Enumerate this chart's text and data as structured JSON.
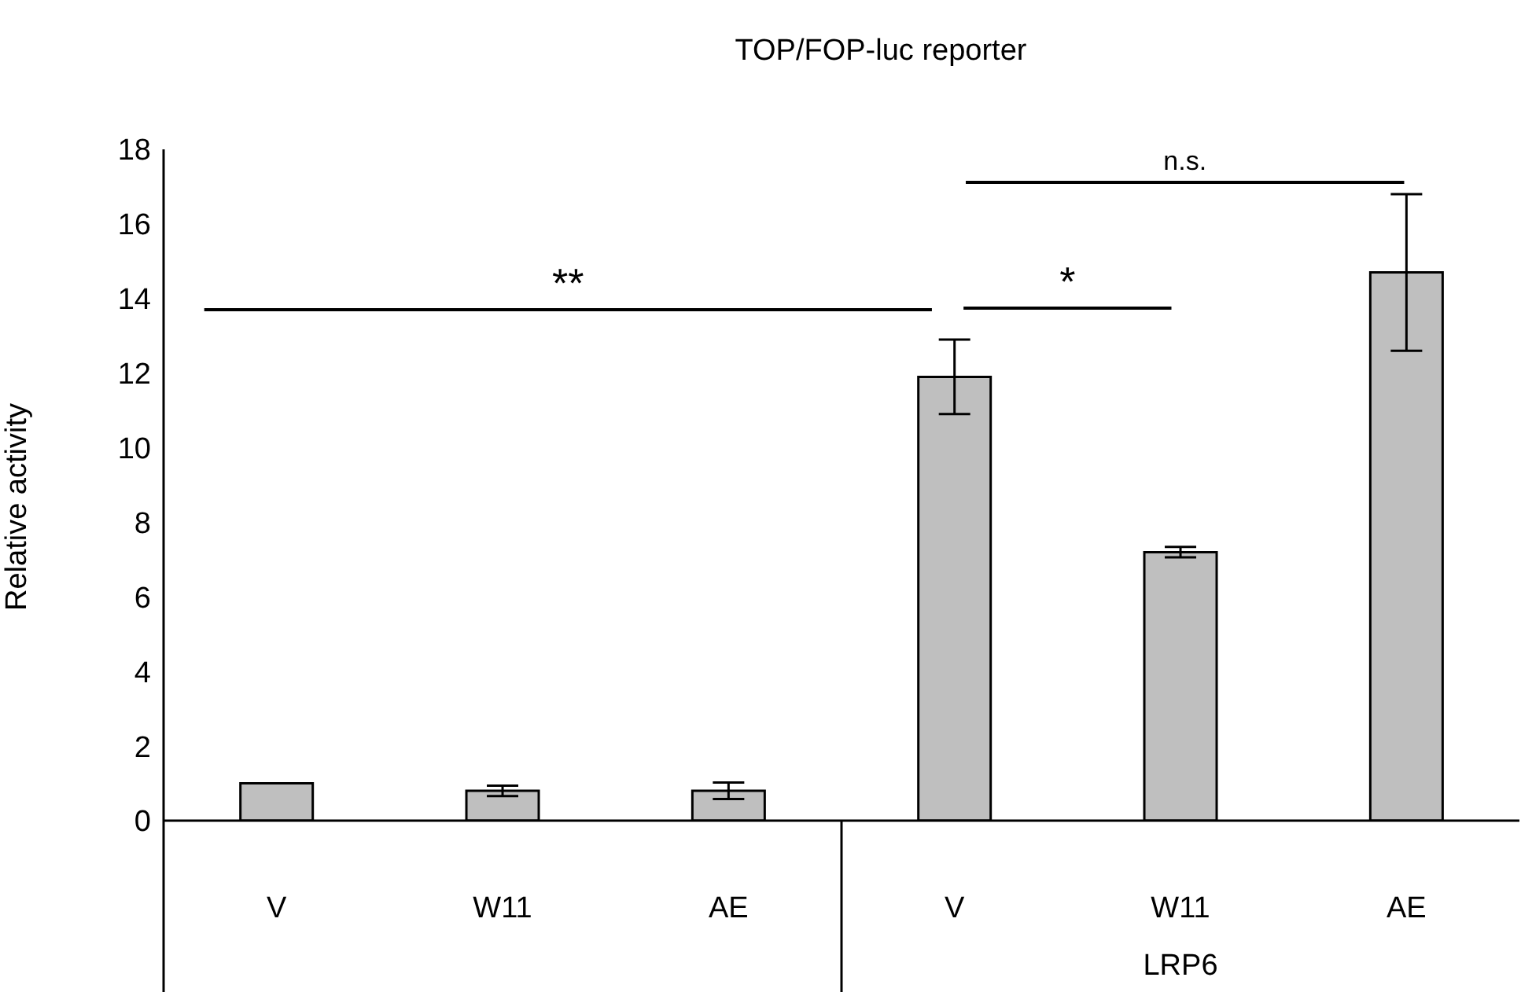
{
  "chart_data": {
    "type": "bar",
    "title": "TOP/FOP-luc reporter",
    "ylabel": "Relative activity",
    "categories": [
      "V",
      "W11",
      "AE",
      "V",
      "W11",
      "AE"
    ],
    "values": [
      1,
      0.8,
      0.8,
      11.9,
      7.2,
      14.7
    ],
    "errors": [
      null,
      0.14,
      0.22,
      1.0,
      0.14,
      2.1
    ],
    "color": "#bfbfbf",
    "ylim": [
      0,
      18
    ],
    "yticks": [
      0,
      2,
      4,
      6,
      8,
      10,
      12,
      14,
      16,
      18
    ],
    "annotations": [
      "**",
      "*",
      "n.s.",
      "LRP6"
    ]
  }
}
